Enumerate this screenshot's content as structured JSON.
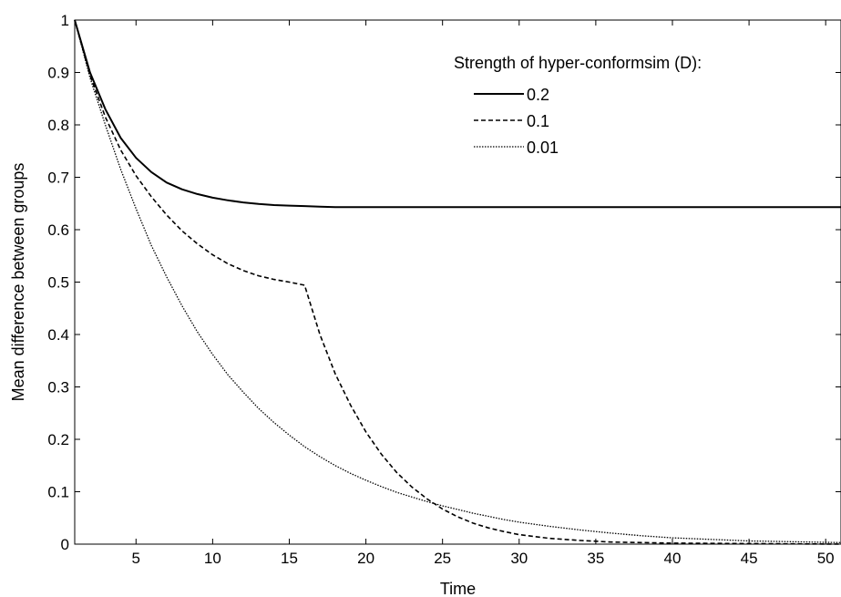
{
  "chart_data": {
    "type": "line",
    "xlabel": "Time",
    "ylabel": "Mean difference between groups",
    "xlim": [
      1,
      51
    ],
    "ylim": [
      0,
      1
    ],
    "x_ticks": [
      5,
      10,
      15,
      20,
      25,
      30,
      35,
      40,
      45,
      50
    ],
    "y_ticks": [
      0,
      0.1,
      0.2,
      0.3,
      0.4,
      0.5,
      0.6,
      0.7,
      0.8,
      0.9,
      1
    ],
    "grid": false,
    "legend": {
      "title": "Strength of hyper-conformsim (D):",
      "placement": "top-right"
    },
    "series": [
      {
        "name": "0.2",
        "style": "solid",
        "x": [
          1,
          2,
          3,
          4,
          5,
          6,
          7,
          8,
          9,
          10,
          11,
          12,
          13,
          14,
          15,
          16,
          17,
          18,
          19,
          20,
          25,
          30,
          35,
          40,
          45,
          51
        ],
        "y": [
          1.0,
          0.9,
          0.83,
          0.775,
          0.737,
          0.71,
          0.69,
          0.677,
          0.668,
          0.661,
          0.656,
          0.652,
          0.649,
          0.647,
          0.646,
          0.645,
          0.644,
          0.643,
          0.643,
          0.643,
          0.643,
          0.643,
          0.643,
          0.643,
          0.643,
          0.643
        ]
      },
      {
        "name": "0.1",
        "style": "dashed",
        "x": [
          1,
          2,
          3,
          4,
          5,
          6,
          7,
          8,
          9,
          10,
          11,
          12,
          13,
          14,
          15,
          16,
          17,
          18,
          19,
          20,
          21,
          22,
          23,
          24,
          25,
          26,
          27,
          28,
          29,
          30,
          32,
          34,
          36,
          38,
          40,
          45,
          51
        ],
        "y": [
          1.0,
          0.895,
          0.815,
          0.752,
          0.703,
          0.663,
          0.628,
          0.598,
          0.573,
          0.552,
          0.535,
          0.522,
          0.512,
          0.505,
          0.5,
          0.494,
          0.4,
          0.325,
          0.265,
          0.214,
          0.172,
          0.137,
          0.109,
          0.086,
          0.067,
          0.052,
          0.04,
          0.031,
          0.024,
          0.018,
          0.011,
          0.007,
          0.004,
          0.003,
          0.002,
          0.001,
          0.0
        ]
      },
      {
        "name": "0.01",
        "style": "dotted",
        "x": [
          1,
          2,
          3,
          4,
          5,
          6,
          7,
          8,
          9,
          10,
          11,
          12,
          13,
          14,
          15,
          16,
          17,
          18,
          19,
          20,
          21,
          22,
          23,
          24,
          25,
          26,
          27,
          28,
          29,
          30,
          32,
          34,
          36,
          38,
          40,
          45,
          51
        ],
        "y": [
          1.0,
          0.89,
          0.8,
          0.715,
          0.64,
          0.57,
          0.51,
          0.455,
          0.405,
          0.362,
          0.323,
          0.29,
          0.259,
          0.232,
          0.208,
          0.186,
          0.167,
          0.15,
          0.135,
          0.122,
          0.11,
          0.099,
          0.09,
          0.081,
          0.073,
          0.066,
          0.059,
          0.053,
          0.047,
          0.042,
          0.034,
          0.027,
          0.021,
          0.016,
          0.012,
          0.006,
          0.003
        ]
      }
    ]
  }
}
